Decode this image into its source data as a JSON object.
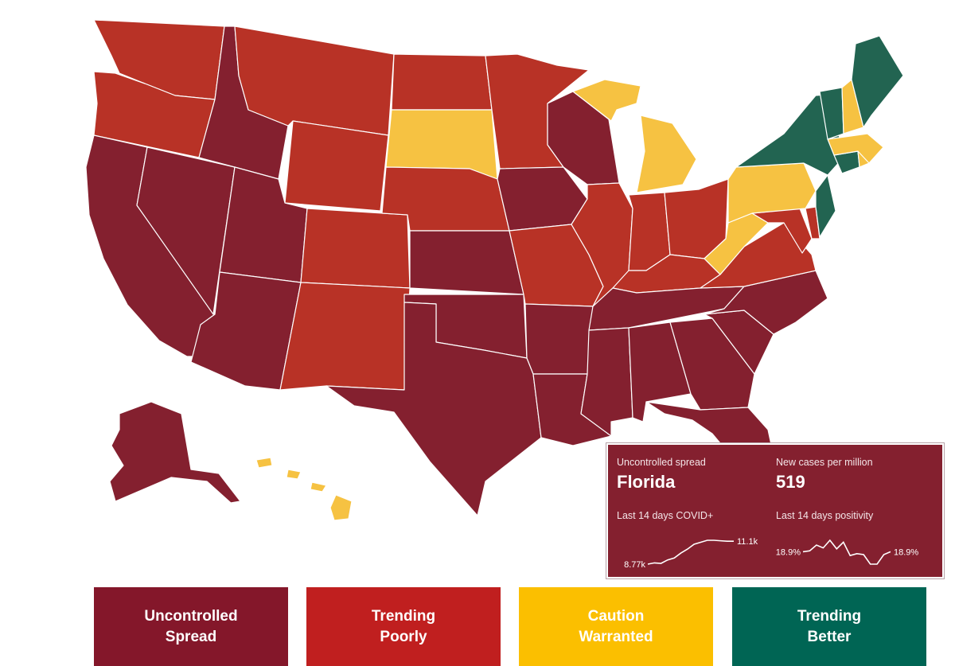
{
  "colors": {
    "uncontrolled": "#84202f",
    "poorly": "#b83226",
    "caution": "#f6c242",
    "better": "#226451",
    "tooltip_bg": "#84202f"
  },
  "map": {
    "states": [
      {
        "id": "WA",
        "status": "poorly"
      },
      {
        "id": "OR",
        "status": "poorly"
      },
      {
        "id": "CA",
        "status": "uncontrolled"
      },
      {
        "id": "NV",
        "status": "uncontrolled"
      },
      {
        "id": "ID",
        "status": "uncontrolled"
      },
      {
        "id": "MT",
        "status": "poorly"
      },
      {
        "id": "WY",
        "status": "poorly"
      },
      {
        "id": "UT",
        "status": "uncontrolled"
      },
      {
        "id": "AZ",
        "status": "uncontrolled"
      },
      {
        "id": "CO",
        "status": "poorly"
      },
      {
        "id": "NM",
        "status": "poorly"
      },
      {
        "id": "ND",
        "status": "poorly"
      },
      {
        "id": "SD",
        "status": "caution"
      },
      {
        "id": "NE",
        "status": "poorly"
      },
      {
        "id": "KS",
        "status": "uncontrolled"
      },
      {
        "id": "OK",
        "status": "uncontrolled"
      },
      {
        "id": "TX",
        "status": "uncontrolled"
      },
      {
        "id": "MN",
        "status": "poorly"
      },
      {
        "id": "IA",
        "status": "uncontrolled"
      },
      {
        "id": "MO",
        "status": "poorly"
      },
      {
        "id": "AR",
        "status": "uncontrolled"
      },
      {
        "id": "LA",
        "status": "uncontrolled"
      },
      {
        "id": "WI",
        "status": "uncontrolled"
      },
      {
        "id": "MI",
        "status": "caution"
      },
      {
        "id": "IL",
        "status": "poorly"
      },
      {
        "id": "IN",
        "status": "poorly"
      },
      {
        "id": "OH",
        "status": "poorly"
      },
      {
        "id": "KY",
        "status": "poorly"
      },
      {
        "id": "TN",
        "status": "uncontrolled"
      },
      {
        "id": "MS",
        "status": "uncontrolled"
      },
      {
        "id": "AL",
        "status": "uncontrolled"
      },
      {
        "id": "GA",
        "status": "uncontrolled"
      },
      {
        "id": "FL",
        "status": "uncontrolled"
      },
      {
        "id": "SC",
        "status": "uncontrolled"
      },
      {
        "id": "NC",
        "status": "uncontrolled"
      },
      {
        "id": "VA",
        "status": "poorly"
      },
      {
        "id": "WV",
        "status": "caution"
      },
      {
        "id": "MD",
        "status": "poorly"
      },
      {
        "id": "DE",
        "status": "poorly"
      },
      {
        "id": "PA",
        "status": "caution"
      },
      {
        "id": "NJ",
        "status": "better"
      },
      {
        "id": "NY",
        "status": "better"
      },
      {
        "id": "CT",
        "status": "better"
      },
      {
        "id": "RI",
        "status": "caution"
      },
      {
        "id": "MA",
        "status": "caution"
      },
      {
        "id": "VT",
        "status": "better"
      },
      {
        "id": "NH",
        "status": "caution"
      },
      {
        "id": "ME",
        "status": "better"
      },
      {
        "id": "AK",
        "status": "uncontrolled"
      },
      {
        "id": "HI",
        "status": "caution"
      }
    ]
  },
  "tooltip": {
    "status": "Uncontrolled spread",
    "state": "Florida",
    "metric_label": "New cases per million",
    "metric_value": "519",
    "covid_label": "Last 14 days COVID+",
    "covid_start": "8.77k",
    "covid_end": "11.1k",
    "covid_series": [
      8.77,
      8.9,
      8.85,
      9.2,
      9.4,
      9.9,
      10.3,
      10.8,
      11.0,
      11.2,
      11.2,
      11.15,
      11.1,
      11.1
    ],
    "positivity_label": "Last 14 days positivity",
    "positivity_start": "18.9%",
    "positivity_end": "18.9%",
    "positivity_series": [
      18.9,
      19.0,
      19.6,
      19.3,
      20.1,
      19.2,
      19.9,
      18.5,
      18.7,
      18.6,
      17.6,
      17.6,
      18.6,
      18.9
    ]
  },
  "legend": [
    {
      "line1": "Uncontrolled",
      "line2": "Spread",
      "color": "#84172a"
    },
    {
      "line1": "Trending",
      "line2": "Poorly",
      "color": "#c01f1f"
    },
    {
      "line1": "Caution",
      "line2": "Warranted",
      "color": "#fbbf00"
    },
    {
      "line1": "Trending",
      "line2": "Better",
      "color": "#006554"
    }
  ]
}
